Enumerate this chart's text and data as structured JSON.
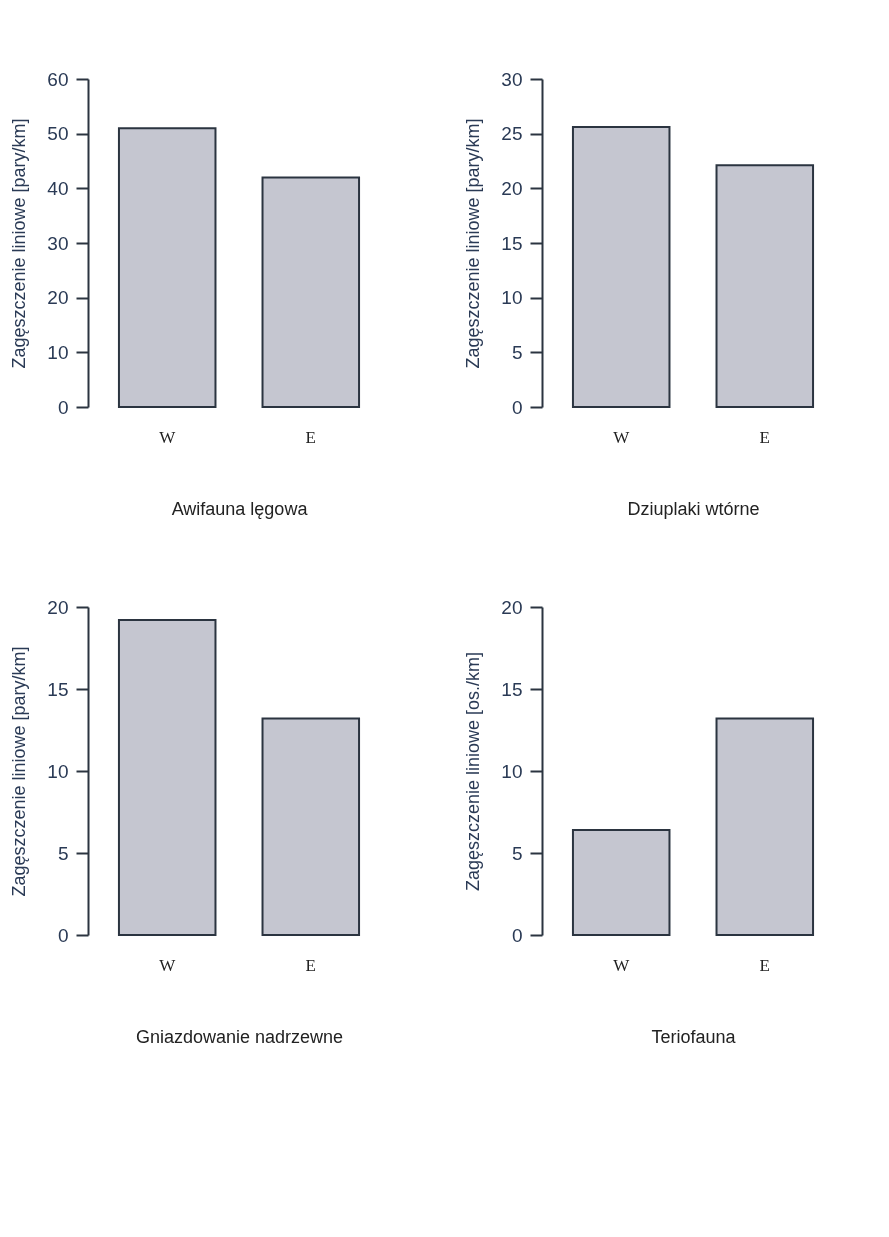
{
  "chart_data": [
    {
      "type": "bar",
      "xlabel": "Awifauna lęgowa",
      "ylabel": "Zagęszczenie liniowe [pary/km]",
      "categories": [
        "W",
        "E"
      ],
      "values": [
        51,
        42
      ],
      "color": "#c5c6d0",
      "ylim": [
        0,
        60
      ],
      "yticks": [
        0,
        10,
        20,
        30,
        40,
        50,
        60
      ]
    },
    {
      "type": "bar",
      "xlabel": "Dziuplaki wtórne",
      "ylabel": "Zagęszczenie liniowe [pary/km]",
      "categories": [
        "W",
        "E"
      ],
      "values": [
        25.6,
        22.1
      ],
      "color": "#c5c6d0",
      "ylim": [
        0,
        30
      ],
      "yticks": [
        0,
        5,
        10,
        15,
        20,
        25,
        30
      ]
    },
    {
      "type": "bar",
      "xlabel": "Gniazdowanie nadrzewne",
      "ylabel": "Zagęszczenie liniowe [pary/km]",
      "categories": [
        "W",
        "E"
      ],
      "values": [
        19.2,
        13.2
      ],
      "color": "#c5c6d0",
      "ylim": [
        0,
        20
      ],
      "yticks": [
        0,
        5,
        10,
        15,
        20
      ]
    },
    {
      "type": "bar",
      "xlabel": "Teriofauna",
      "ylabel": "Zagęszczenie liniowe [os./km]",
      "categories": [
        "W",
        "E"
      ],
      "values": [
        6.4,
        13.2
      ],
      "color": "#c5c6d0",
      "ylim": [
        0,
        20
      ],
      "yticks": [
        0,
        5,
        10,
        15,
        20
      ]
    }
  ]
}
